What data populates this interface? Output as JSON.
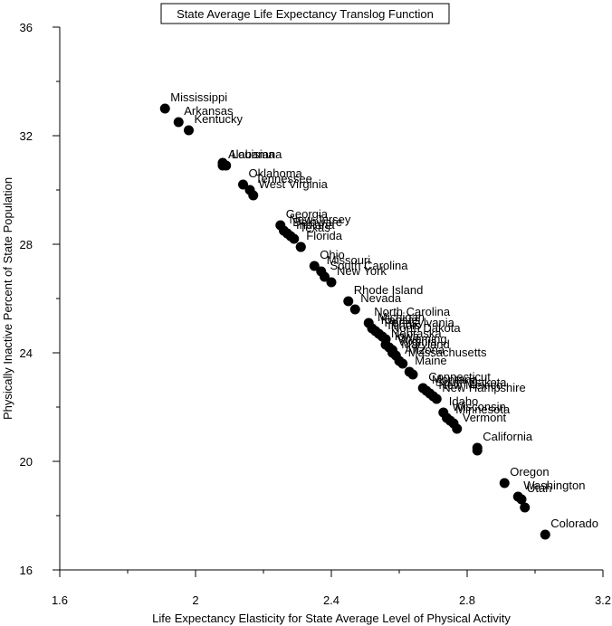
{
  "chart_data": {
    "type": "scatter",
    "title": "State Average Life Expectancy Translog Function",
    "xlabel": "Life Expectancy Elasticity for State Average Level of Physical Activity",
    "ylabel": "Physically Inactive Percent of State Population",
    "xlim": [
      1.6,
      3.2
    ],
    "ylim": [
      16,
      36
    ],
    "xticks": [
      1.6,
      2.0,
      2.4,
      2.8,
      3.2
    ],
    "xtick_labels": [
      "1.6",
      "2",
      "2.4",
      "2.8",
      "3.2"
    ],
    "xticks_minor": [
      1.8,
      2.2,
      2.6,
      3.0
    ],
    "yticks": [
      16,
      20,
      24,
      28,
      32,
      36
    ],
    "ytick_labels": [
      "16",
      "20",
      "24",
      "28",
      "32",
      "36"
    ],
    "yticks_minor": [
      18,
      22,
      26,
      30,
      34
    ],
    "grid": false,
    "legend": "none",
    "marker_color": "#000000",
    "points": [
      {
        "label": "Mississippi",
        "x": 1.91,
        "y": 33.0
      },
      {
        "label": "Arkansas",
        "x": 1.95,
        "y": 32.5
      },
      {
        "label": "Kentucky",
        "x": 1.98,
        "y": 32.2
      },
      {
        "label": "Alabama",
        "x": 2.08,
        "y": 30.9
      },
      {
        "label": "",
        "x": 2.08,
        "y": 31.0
      },
      {
        "label": "Louisiana",
        "x": 2.09,
        "y": 30.9
      },
      {
        "label": "Oklahoma",
        "x": 2.14,
        "y": 30.2
      },
      {
        "label": "Tennessee",
        "x": 2.16,
        "y": 30.0
      },
      {
        "label": "West Virginia",
        "x": 2.17,
        "y": 29.8
      },
      {
        "label": "Georgia",
        "x": 2.25,
        "y": 28.7
      },
      {
        "label": "New Jersey",
        "x": 2.26,
        "y": 28.5
      },
      {
        "label": "Delaware",
        "x": 2.27,
        "y": 28.4
      },
      {
        "label": "Indiana",
        "x": 2.28,
        "y": 28.3
      },
      {
        "label": "Texas",
        "x": 2.29,
        "y": 28.2
      },
      {
        "label": "Florida",
        "x": 2.31,
        "y": 27.9
      },
      {
        "label": "",
        "x": 2.31,
        "y": 27.9
      },
      {
        "label": "Ohio",
        "x": 2.35,
        "y": 27.2
      },
      {
        "label": "Missouri",
        "x": 2.37,
        "y": 27.0
      },
      {
        "label": "South Carolina",
        "x": 2.38,
        "y": 26.8
      },
      {
        "label": "New York",
        "x": 2.4,
        "y": 26.6
      },
      {
        "label": "Rhode Island",
        "x": 2.45,
        "y": 25.9
      },
      {
        "label": "Nevada",
        "x": 2.47,
        "y": 25.6
      },
      {
        "label": "North Carolina",
        "x": 2.51,
        "y": 25.1
      },
      {
        "label": "Michigan",
        "x": 2.52,
        "y": 24.9
      },
      {
        "label": "Kansas",
        "x": 2.53,
        "y": 24.8
      },
      {
        "label": "Pennsylvania",
        "x": 2.54,
        "y": 24.7
      },
      {
        "label": "Illinois",
        "x": 2.55,
        "y": 24.6
      },
      {
        "label": "North Dakota",
        "x": 2.56,
        "y": 24.5
      },
      {
        "label": "Nebraska",
        "x": 2.56,
        "y": 24.3
      },
      {
        "label": "Iowa",
        "x": 2.57,
        "y": 24.2
      },
      {
        "label": "Wyoming",
        "x": 2.58,
        "y": 24.1
      },
      {
        "label": "Virginia",
        "x": 2.58,
        "y": 24.0
      },
      {
        "label": "Maryland",
        "x": 2.59,
        "y": 23.9
      },
      {
        "label": "Arizona",
        "x": 2.6,
        "y": 23.7
      },
      {
        "label": "Massachusetts",
        "x": 2.61,
        "y": 23.6
      },
      {
        "label": "Maine",
        "x": 2.63,
        "y": 23.3
      },
      {
        "label": "",
        "x": 2.64,
        "y": 23.2
      },
      {
        "label": "Connecticut",
        "x": 2.67,
        "y": 22.7
      },
      {
        "label": "Montana",
        "x": 2.68,
        "y": 22.6
      },
      {
        "label": "South Dakota",
        "x": 2.69,
        "y": 22.5
      },
      {
        "label": "New Mexico",
        "x": 2.7,
        "y": 22.4
      },
      {
        "label": "New Hampshire",
        "x": 2.71,
        "y": 22.3
      },
      {
        "label": "Idaho",
        "x": 2.73,
        "y": 21.8
      },
      {
        "label": "Wisconsin",
        "x": 2.74,
        "y": 21.6
      },
      {
        "label": "Minnesota",
        "x": 2.75,
        "y": 21.5
      },
      {
        "label": "",
        "x": 2.76,
        "y": 21.4
      },
      {
        "label": "Vermont",
        "x": 2.77,
        "y": 21.2
      },
      {
        "label": "California",
        "x": 2.83,
        "y": 20.5
      },
      {
        "label": "",
        "x": 2.83,
        "y": 20.4
      },
      {
        "label": "Oregon",
        "x": 2.91,
        "y": 19.2
      },
      {
        "label": "Utah",
        "x": 2.96,
        "y": 18.6
      },
      {
        "label": "Washington",
        "x": 2.95,
        "y": 18.7
      },
      {
        "label": "",
        "x": 2.97,
        "y": 18.3
      },
      {
        "label": "Colorado",
        "x": 3.03,
        "y": 17.3
      }
    ]
  }
}
